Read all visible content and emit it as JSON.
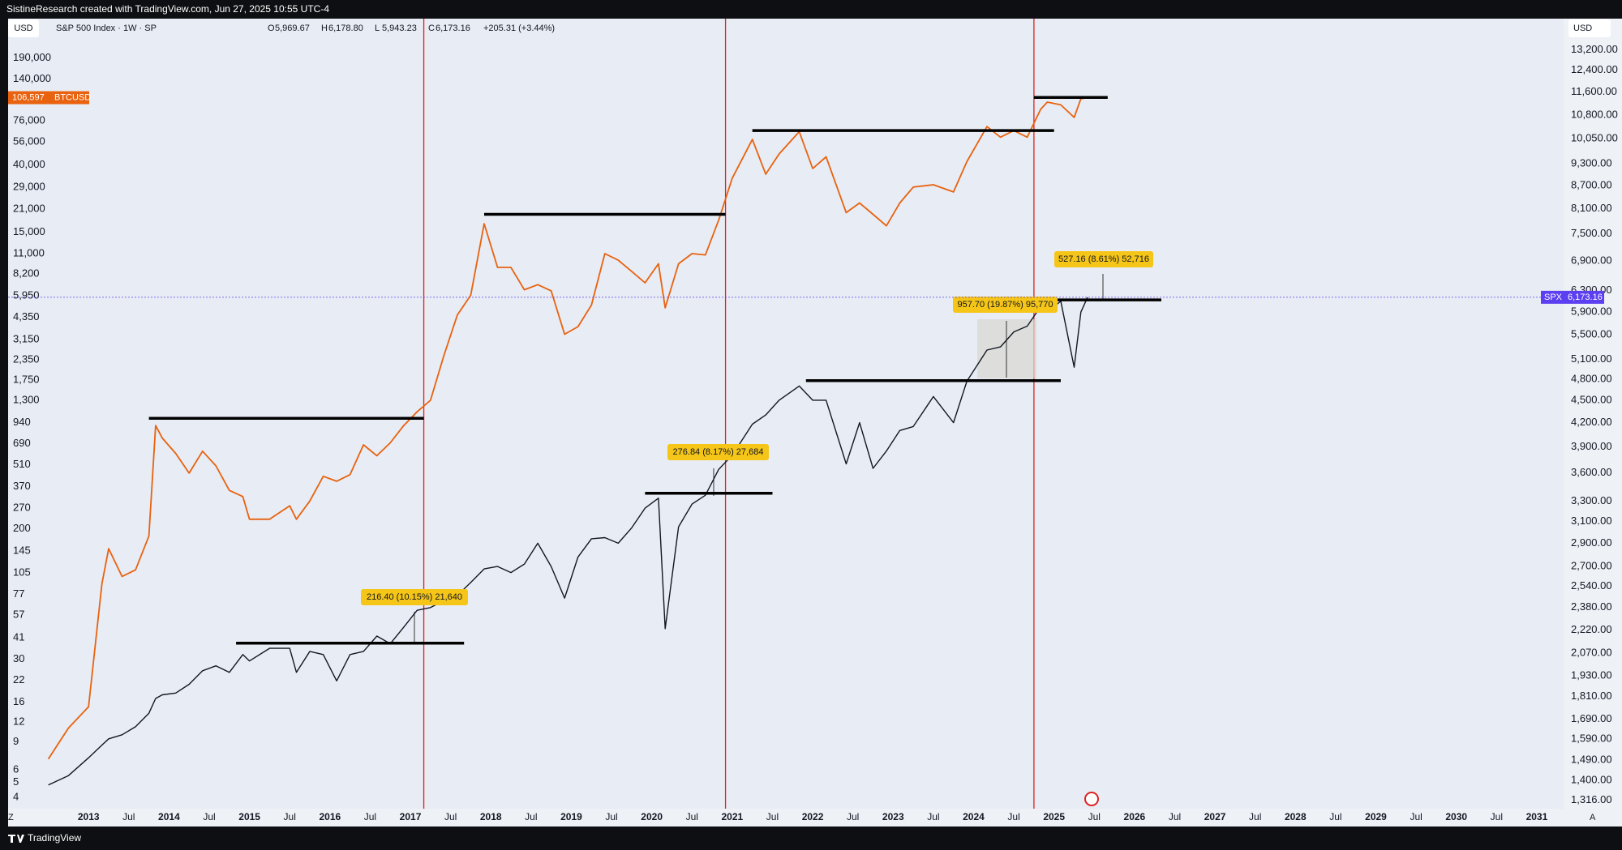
{
  "header": {
    "credit": "SistineResearch created with TradingView.com, Jun 27, 2025 10:55 UTC-4",
    "currency": "USD",
    "currency_right": "USD",
    "symbol": "S&P 500 Index · 1W · SP",
    "ohlc": [
      {
        "key": "O",
        "text": "5,969.67"
      },
      {
        "key": "H",
        "text": "6,178.80"
      },
      {
        "key": "L",
        "text": "5,943.23"
      },
      {
        "key": "C",
        "text": "6,173.16"
      }
    ],
    "change": "+205.31 (+3.44%)"
  },
  "footer": {
    "brand": "TradingView",
    "corner_left": "Z",
    "corner_right": "A"
  },
  "chart_data": {
    "type": "line",
    "log_scale": true,
    "grid": false,
    "x": [
      "2012-07",
      "2012-10",
      "2013-01",
      "2013-03",
      "2013-04",
      "2013-06",
      "2013-08",
      "2013-10",
      "2013-11",
      "2013-12",
      "2014-02",
      "2014-04",
      "2014-06",
      "2014-08",
      "2014-10",
      "2014-12",
      "2015-01",
      "2015-04",
      "2015-07",
      "2015-08",
      "2015-10",
      "2015-12",
      "2016-02",
      "2016-04",
      "2016-06",
      "2016-08",
      "2016-10",
      "2016-12",
      "2017-02",
      "2017-04",
      "2017-06",
      "2017-08",
      "2017-10",
      "2017-12",
      "2018-02",
      "2018-04",
      "2018-06",
      "2018-08",
      "2018-10",
      "2018-12",
      "2019-02",
      "2019-04",
      "2019-06",
      "2019-08",
      "2019-10",
      "2019-12",
      "2020-02",
      "2020-03",
      "2020-05",
      "2020-07",
      "2020-09",
      "2020-11",
      "2021-01",
      "2021-04",
      "2021-06",
      "2021-08",
      "2021-11",
      "2022-01",
      "2022-03",
      "2022-06",
      "2022-08",
      "2022-10",
      "2022-12",
      "2023-02",
      "2023-04",
      "2023-07",
      "2023-10",
      "2023-12",
      "2024-03",
      "2024-05",
      "2024-07",
      "2024-09",
      "2024-11",
      "2024-12",
      "2025-02",
      "2025-04",
      "2025-05",
      "2025-06"
    ],
    "series": [
      {
        "name": "BTCUSD",
        "color": "#e8620f",
        "axis": "y",
        "last_label": "106,597",
        "values": [
          7,
          11,
          15,
          90,
          150,
          100,
          110,
          180,
          900,
          750,
          600,
          450,
          620,
          500,
          350,
          320,
          230,
          230,
          280,
          230,
          300,
          430,
          400,
          440,
          680,
          580,
          700,
          900,
          1100,
          1300,
          2500,
          4500,
          6000,
          17000,
          9000,
          9000,
          6500,
          7000,
          6400,
          3400,
          3800,
          5200,
          11000,
          10000,
          8500,
          7200,
          9500,
          5000,
          9500,
          11000,
          10800,
          18000,
          33000,
          58000,
          35000,
          47000,
          65000,
          38000,
          45000,
          20000,
          23000,
          19500,
          16500,
          23000,
          29000,
          30000,
          27000,
          42000,
          70000,
          60000,
          66000,
          60000,
          90000,
          100000,
          96000,
          80000,
          105000,
          106597
        ]
      },
      {
        "name": "SPX",
        "color": "#131722",
        "axis": "y2",
        "last_label": "6,173.16",
        "values": [
          1380,
          1420,
          1500,
          1560,
          1590,
          1610,
          1650,
          1720,
          1800,
          1820,
          1830,
          1880,
          1960,
          1990,
          1950,
          2060,
          2020,
          2100,
          2100,
          1950,
          2080,
          2060,
          1900,
          2060,
          2080,
          2180,
          2130,
          2240,
          2360,
          2380,
          2430,
          2470,
          2570,
          2680,
          2700,
          2650,
          2720,
          2900,
          2700,
          2450,
          2780,
          2940,
          2950,
          2900,
          3040,
          3230,
          3330,
          2230,
          3050,
          3270,
          3360,
          3640,
          3800,
          4180,
          4300,
          4500,
          4700,
          4500,
          4500,
          3700,
          4200,
          3650,
          3850,
          4100,
          4150,
          4550,
          4200,
          4770,
          5250,
          5300,
          5550,
          5650,
          6000,
          5900,
          6100,
          4980,
          5900,
          6173.16
        ]
      }
    ],
    "xlim": [
      "2012-01",
      "2031-05"
    ],
    "xticks": [
      {
        "value": "2013-01",
        "label": "2013"
      },
      {
        "value": "2013-07",
        "label": "Jul"
      },
      {
        "value": "2014-01",
        "label": "2014"
      },
      {
        "value": "2014-07",
        "label": "Jul"
      },
      {
        "value": "2015-01",
        "label": "2015"
      },
      {
        "value": "2015-07",
        "label": "Jul"
      },
      {
        "value": "2016-01",
        "label": "2016"
      },
      {
        "value": "2016-07",
        "label": "Jul"
      },
      {
        "value": "2017-01",
        "label": "2017"
      },
      {
        "value": "2017-07",
        "label": "Jul"
      },
      {
        "value": "2018-01",
        "label": "2018"
      },
      {
        "value": "2018-07",
        "label": "Jul"
      },
      {
        "value": "2019-01",
        "label": "2019"
      },
      {
        "value": "2019-07",
        "label": "Jul"
      },
      {
        "value": "2020-01",
        "label": "2020"
      },
      {
        "value": "2020-07",
        "label": "Jul"
      },
      {
        "value": "2021-01",
        "label": "2021"
      },
      {
        "value": "2021-07",
        "label": "Jul"
      },
      {
        "value": "2022-01",
        "label": "2022"
      },
      {
        "value": "2022-07",
        "label": "Jul"
      },
      {
        "value": "2023-01",
        "label": "2023"
      },
      {
        "value": "2023-07",
        "label": "Jul"
      },
      {
        "value": "2024-01",
        "label": "2024"
      },
      {
        "value": "2024-07",
        "label": "Jul"
      },
      {
        "value": "2025-01",
        "label": "2025"
      },
      {
        "value": "2025-07",
        "label": "Jul"
      },
      {
        "value": "2026-01",
        "label": "2026"
      },
      {
        "value": "2026-07",
        "label": "Jul"
      },
      {
        "value": "2027-01",
        "label": "2027"
      },
      {
        "value": "2027-07",
        "label": "Jul"
      },
      {
        "value": "2028-01",
        "label": "2028"
      },
      {
        "value": "2028-07",
        "label": "Jul"
      },
      {
        "value": "2029-01",
        "label": "2029"
      },
      {
        "value": "2029-07",
        "label": "Jul"
      },
      {
        "value": "2030-01",
        "label": "2030"
      },
      {
        "value": "2030-07",
        "label": "Jul"
      },
      {
        "value": "2031-01",
        "label": "2031"
      }
    ],
    "ylim": [
      3.4,
      337000
    ],
    "yticks": [
      4,
      5,
      6,
      9,
      12,
      16,
      22,
      30,
      41,
      57,
      77,
      105,
      145,
      200,
      270,
      370,
      510,
      690,
      940,
      {
        "value": 1300,
        "label": "1,300"
      },
      {
        "value": 1750,
        "label": "1,750"
      },
      {
        "value": 2350,
        "label": "2,350"
      },
      {
        "value": 3150,
        "label": "3,150"
      },
      {
        "value": 4350,
        "label": "4,350"
      },
      {
        "value": 5950,
        "label": "5,950"
      },
      {
        "value": 8200,
        "label": "8,200"
      },
      {
        "value": 11000,
        "label": "11,000"
      },
      {
        "value": 15000,
        "label": "15,000"
      },
      {
        "value": 21000,
        "label": "21,000"
      },
      {
        "value": 29000,
        "label": "29,000"
      },
      {
        "value": 40000,
        "label": "40,000"
      },
      {
        "value": 56000,
        "label": "56,000"
      },
      {
        "value": 76000,
        "label": "76,000"
      },
      {
        "value": 140000,
        "label": "140,000"
      },
      {
        "value": 190000,
        "label": "190,000"
      }
    ],
    "y2lim": [
      1283,
      14530
    ],
    "y2ticks": [
      {
        "value": 1316,
        "label": "1,316.00"
      },
      {
        "value": 1400,
        "label": "1,400.00"
      },
      {
        "value": 1490,
        "label": "1,490.00"
      },
      {
        "value": 1590,
        "label": "1,590.00"
      },
      {
        "value": 1690,
        "label": "1,690.00"
      },
      {
        "value": 1810,
        "label": "1,810.00"
      },
      {
        "value": 1930,
        "label": "1,930.00"
      },
      {
        "value": 2070,
        "label": "2,070.00"
      },
      {
        "value": 2220,
        "label": "2,220.00"
      },
      {
        "value": 2380,
        "label": "2,380.00"
      },
      {
        "value": 2540,
        "label": "2,540.00"
      },
      {
        "value": 2700,
        "label": "2,700.00"
      },
      {
        "value": 2900,
        "label": "2,900.00"
      },
      {
        "value": 3100,
        "label": "3,100.00"
      },
      {
        "value": 3300,
        "label": "3,300.00"
      },
      {
        "value": 3600,
        "label": "3,600.00"
      },
      {
        "value": 3900,
        "label": "3,900.00"
      },
      {
        "value": 4200,
        "label": "4,200.00"
      },
      {
        "value": 4500,
        "label": "4,500.00"
      },
      {
        "value": 4800,
        "label": "4,800.00"
      },
      {
        "value": 5100,
        "label": "5,100.00"
      },
      {
        "value": 5500,
        "label": "5,500.00"
      },
      {
        "value": 5900,
        "label": "5,900.00"
      },
      {
        "value": 6300,
        "label": "6,300.00"
      },
      {
        "value": 6900,
        "label": "6,900.00"
      },
      {
        "value": 7500,
        "label": "7,500.00"
      },
      {
        "value": 8100,
        "label": "8,100.00"
      },
      {
        "value": 8700,
        "label": "8,700.00"
      },
      {
        "value": 9300,
        "label": "9,300.00"
      },
      {
        "value": 10050,
        "label": "10,050.00"
      },
      {
        "value": 10800,
        "label": "10,800.00"
      },
      {
        "value": 11600,
        "label": "11,600.00"
      },
      {
        "value": 12400,
        "label": "12,400.00"
      },
      {
        "value": 13200,
        "label": "13,200.00"
      }
    ],
    "vlines": [
      "2017-03",
      "2020-12",
      "2024-10"
    ],
    "levels": [
      {
        "axis": "y",
        "x": [
          "2013-10",
          "2017-03"
        ],
        "value": 1000
      },
      {
        "axis": "y",
        "x": [
          "2017-12",
          "2020-12"
        ],
        "value": 19500
      },
      {
        "axis": "y",
        "x": [
          "2021-04",
          "2025-01"
        ],
        "value": 66000
      },
      {
        "axis": "y",
        "x": [
          "2024-10",
          "2025-09"
        ],
        "value": 107000
      },
      {
        "axis": "y2",
        "x": [
          "2014-11",
          "2017-09"
        ],
        "value": 2133
      },
      {
        "axis": "y2",
        "x": [
          "2019-12",
          "2021-07"
        ],
        "value": 3381
      },
      {
        "axis": "y2",
        "x": [
          "2021-12",
          "2025-02"
        ],
        "value": 4778
      },
      {
        "axis": "y2",
        "x": [
          "2025-01",
          "2026-05"
        ],
        "value": 6123
      }
    ],
    "annotations": [
      "216.40 (10.15%) 21,640",
      "276.84 (8.17%) 27,684",
      "957.70 (19.87%) 95,770",
      "527.16 (8.61%) 52,716"
    ]
  }
}
